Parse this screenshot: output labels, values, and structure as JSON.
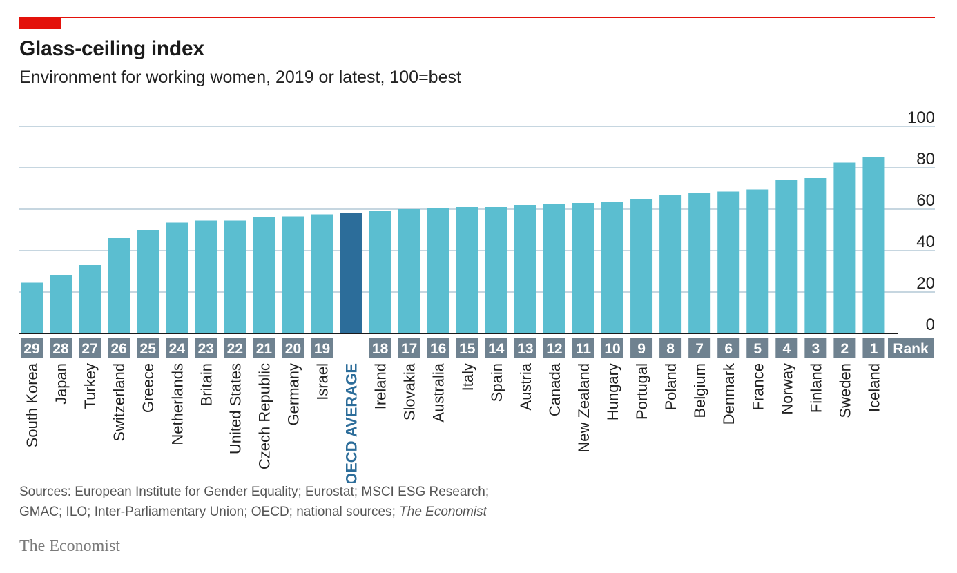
{
  "header": {
    "title": "Glass-ceiling index",
    "subtitle": "Environment for working women, 2019 or latest, 100=best"
  },
  "colors": {
    "accent_red": "#e3120b",
    "bar": "#5bbed0",
    "highlight_bar": "#2c6d9a",
    "rank_box": "#6f8290",
    "gridline": "#b4c8d6",
    "highlight_label": "#2c6d9a"
  },
  "chart_data": {
    "type": "bar",
    "title": "Glass-ceiling index",
    "subtitle": "Environment for working women, 2019 or latest, 100=best",
    "ylim": [
      0,
      100
    ],
    "yticks": [
      0,
      20,
      40,
      60,
      80,
      100
    ],
    "y_axis_side": "right",
    "grid": true,
    "rank_header": "Rank",
    "highlight": "OECD AVERAGE",
    "categories": [
      "South Korea",
      "Japan",
      "Turkey",
      "Switzerland",
      "Greece",
      "Netherlands",
      "Britain",
      "United States",
      "Czech Republic",
      "Germany",
      "Israel",
      "OECD AVERAGE",
      "Ireland",
      "Slovakia",
      "Australia",
      "Italy",
      "Spain",
      "Austria",
      "Canada",
      "New Zealand",
      "Hungary",
      "Portugal",
      "Poland",
      "Belgium",
      "Denmark",
      "France",
      "Norway",
      "Finland",
      "Sweden",
      "Iceland"
    ],
    "ranks": [
      "29",
      "28",
      "27",
      "26",
      "25",
      "24",
      "23",
      "22",
      "21",
      "20",
      "19",
      "",
      "18",
      "17",
      "16",
      "15",
      "14",
      "13",
      "12",
      "11",
      "10",
      "9",
      "8",
      "7",
      "6",
      "5",
      "4",
      "3",
      "2",
      "1"
    ],
    "values": [
      24.5,
      28,
      33,
      46,
      50,
      53.5,
      54.5,
      54.5,
      56,
      56.5,
      57.5,
      58,
      59,
      60,
      60.5,
      61,
      61,
      62,
      62.5,
      63,
      63.5,
      65,
      67,
      68,
      68.5,
      69.5,
      74,
      75,
      82.5,
      85
    ]
  },
  "footer": {
    "source_line1": "Sources: European Institute for Gender Equality; Eurostat; MSCI ESG Research;",
    "source_line2": "GMAC; ILO; Inter-Parliamentary Union; OECD; national sources;",
    "source_italic": "The Economist",
    "brand": "The Economist"
  }
}
